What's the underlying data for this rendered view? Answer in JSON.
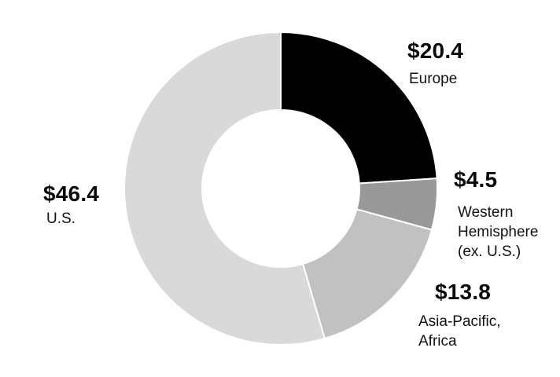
{
  "page": {
    "background_color": "#ffffff",
    "text_color": "#0a0a0a"
  },
  "chart_data": {
    "type": "pie",
    "variant": "donut",
    "title": "",
    "legend_position": "outside-callouts",
    "start_angle_deg": 0,
    "direction": "clockwise",
    "separator_color": "#ffffff",
    "segments": [
      {
        "id": "europe",
        "label": "Europe",
        "value": 20.4,
        "display_value": "$20.4",
        "color": "#000000"
      },
      {
        "id": "western-hemisphere",
        "label": "Western Hemisphere (ex. U.S.)",
        "value": 4.5,
        "display_value": "$4.5",
        "color": "#999999"
      },
      {
        "id": "asia-pacific-africa",
        "label": "Asia-Pacific, Africa",
        "value": 13.8,
        "display_value": "$13.8",
        "color": "#c1c1c1"
      },
      {
        "id": "us",
        "label": "U.S.",
        "value": 46.4,
        "display_value": "$46.4",
        "color": "#d9d9d9"
      }
    ]
  }
}
